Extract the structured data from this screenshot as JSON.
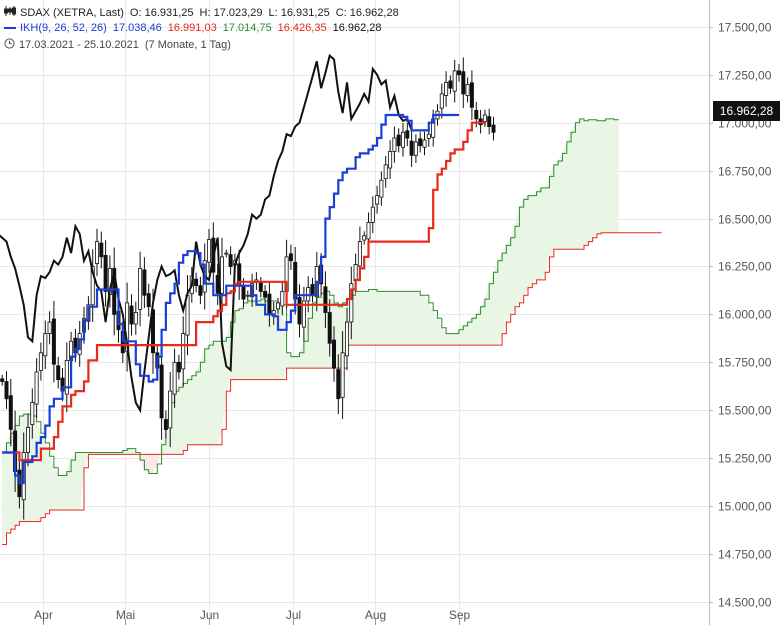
{
  "legend": {
    "instrument": "SDAX (XETRA, Last)",
    "open": "O: 16.931,25",
    "high": "H: 17.023,29",
    "low": "L: 16.931,25",
    "close": "C: 16.962,28",
    "indicator": "IKH(9, 26, 52, 26)",
    "ind_v1": "17.038,46",
    "ind_v2": "16.991,03",
    "ind_v3": "17.014,75",
    "ind_v4": "16.426,35",
    "ind_v5": "16.962,28",
    "period": "17.03.2021 - 25.10.2021",
    "period_note": "(7 Monate, 1 Tag)"
  },
  "price_label": "16.962,28",
  "colors": {
    "tenkan": "#1a3fd6",
    "kijun": "#e8291c",
    "senkou_a": "#2e8b2e",
    "senkou_b": "#e8291c",
    "chikou": "#111111",
    "cloud_bull": "#e9f6e6",
    "cloud_bear": "#fde9e9",
    "grid": "#e8e8e8"
  },
  "chart_data": {
    "type": "line",
    "title": "SDAX (XETRA, Last)",
    "ylim": [
      14380,
      17640
    ],
    "y_ticks": [
      17500,
      17250,
      17000,
      16750,
      16500,
      16250,
      16000,
      15750,
      15500,
      15250,
      15000,
      14750,
      14500
    ],
    "y_tick_labels": [
      "17.500,00",
      "17.250,00",
      "17.000,00",
      "16.750,00",
      "16.500,00",
      "16.250,00",
      "16.000,00",
      "15.750,00",
      "15.500,00",
      "15.250,00",
      "15.000,00",
      "14.750,00",
      "14.500,00"
    ],
    "x_ticks": [
      {
        "label": "Apr",
        "t": 9.5
      },
      {
        "label": "Mai",
        "t": 28.5
      },
      {
        "label": "Jun",
        "t": 48
      },
      {
        "label": "Jul",
        "t": 67.5
      },
      {
        "label": "Aug",
        "t": 86.5
      },
      {
        "label": "Sep",
        "t": 106
      }
    ],
    "t_range": [
      -0.5,
      164
    ],
    "candles_close": [
      15650,
      15560,
      15400,
      15180,
      15050,
      15280,
      15410,
      15540,
      15700,
      15800,
      15900,
      15960,
      15740,
      15660,
      15600,
      15760,
      15860,
      15800,
      15900,
      15980,
      16050,
      16250,
      16380,
      16300,
      16120,
      16240,
      16000,
      15920,
      15800,
      16060,
      15950,
      16010,
      16240,
      16100,
      16040,
      15800,
      15720,
      15460,
      15400,
      15600,
      15750,
      15700,
      15900,
      16100,
      16200,
      16150,
      16100,
      16280,
      16390,
      16220,
      16110,
      16300,
      16320,
      16250,
      16280,
      16150,
      16080,
      16100,
      16160,
      16180,
      16120,
      16090,
      16000,
      16020,
      16060,
      16120,
      16300,
      16280,
      16080,
      15950,
      16070,
      16140,
      16100,
      16250,
      16160,
      16010,
      15850,
      15720,
      15560,
      15800,
      15960,
      16160,
      16260,
      16380,
      16410,
      16480,
      16560,
      16620,
      16700,
      16780,
      16850,
      16920,
      16880,
      16950,
      16920,
      16830,
      16900,
      16880,
      16910,
      16940,
      17020,
      17060,
      17150,
      17210,
      17180,
      17270,
      17250,
      17150,
      17200,
      17080,
      17020,
      16990,
      17040,
      16980,
      16950
    ],
    "series": [
      {
        "name": "IKH(9, 26, 52, 26)",
        "t_start": 0,
        "values": [
          15280,
          15280,
          15280,
          15160,
          15120,
          15230,
          15230,
          15260,
          15330,
          15360,
          15420,
          15520,
          15560,
          15560,
          15620,
          15620,
          15780,
          15820,
          15870,
          15970,
          16040,
          16040,
          16130,
          16130,
          16130,
          16130,
          16130,
          15950,
          15860,
          15860,
          15860,
          15740,
          15680,
          15680,
          15650,
          15660,
          15780,
          15920,
          16060,
          16110,
          16160,
          16270,
          16310,
          16330,
          16330,
          16320,
          16260,
          16160,
          16160,
          16100,
          16100,
          16100,
          16150,
          16150,
          16150,
          16150,
          16150,
          16150,
          16100,
          16050,
          16050,
          16000,
          16000,
          15990,
          15920,
          15920,
          15960,
          16020,
          16100,
          16100,
          16100,
          16100,
          16100,
          16170,
          16300,
          16500,
          16560,
          16630,
          16700,
          16740,
          16760,
          16760,
          16820,
          16840,
          16840,
          16860,
          16880,
          16920,
          16990,
          17040,
          17040,
          17040,
          17040,
          17030,
          17010,
          16960,
          16960,
          16960,
          16960,
          17000,
          17040,
          17040,
          17040,
          17040,
          17040,
          17040,
          17040
        ]
      },
      {
        "name": "IKH(9, 26, 52, 26)",
        "t_start": 0,
        "values": [
          15280,
          15280,
          15280,
          15280,
          15240,
          15240,
          15240,
          15240,
          15240,
          15300,
          15300,
          15300,
          15360,
          15440,
          15520,
          15520,
          15580,
          15600,
          15600,
          15650,
          15760,
          15760,
          15840,
          15840,
          15840,
          15840,
          15840,
          15840,
          15840,
          15840,
          15840,
          15840,
          15840,
          15840,
          15840,
          15840,
          15840,
          15840,
          15840,
          15840,
          15840,
          15840,
          15840,
          15840,
          15840,
          15960,
          15960,
          15960,
          15960,
          15990,
          16020,
          16050,
          16110,
          16120,
          16160,
          16170,
          16170,
          16170,
          16170,
          16170,
          16170,
          16170,
          16170,
          16170,
          16170,
          16170,
          16050,
          16050,
          16050,
          16050,
          16050,
          16050,
          16050,
          16050,
          16050,
          16050,
          16050,
          16050,
          16050,
          16050,
          16080,
          16130,
          16180,
          16240,
          16300,
          16380,
          16380,
          16380,
          16380,
          16380,
          16380,
          16380,
          16380,
          16380,
          16380,
          16380,
          16380,
          16380,
          16380,
          16450,
          16650,
          16730,
          16760,
          16800,
          16840,
          16860,
          16860,
          16900,
          16960,
          17000,
          17000,
          17000,
          16991
        ]
      },
      {
        "name": "IKH(9, 26, 52, 26)",
        "t_start": 0,
        "values": [
          15280,
          15330,
          15380,
          15420,
          15470,
          15480,
          15480,
          15470,
          15440,
          15380,
          15330,
          15260,
          15200,
          15160,
          15160,
          15180,
          15240,
          15280,
          15280,
          15280,
          15280,
          15280,
          15280,
          15280,
          15280,
          15280,
          15280,
          15280,
          15290,
          15300,
          15300,
          15280,
          15240,
          15190,
          15170,
          15170,
          15220,
          15320,
          15440,
          15540,
          15600,
          15620,
          15640,
          15660,
          15680,
          15700,
          15750,
          15820,
          15840,
          15860,
          15860,
          15860,
          15880,
          15960,
          16020,
          16030,
          16060,
          16070,
          16070,
          16070,
          16080,
          16070,
          16070,
          16070,
          16060,
          16050,
          15800,
          15780,
          15780,
          15800,
          15860,
          15980,
          16060,
          16090,
          16110,
          16120,
          16100,
          16060,
          16040,
          16060,
          16080,
          16100,
          16120,
          16120,
          16120,
          16130,
          16130,
          16120,
          16120,
          16120,
          16120,
          16120,
          16120,
          16120,
          16120,
          16120,
          16120,
          16100,
          16100,
          16060,
          16020,
          15980,
          15930,
          15900,
          15900,
          15900,
          15920,
          15940,
          15960,
          15980,
          16000,
          16040,
          16080,
          16160,
          16220,
          16280,
          16320,
          16360,
          16400,
          16460,
          16560,
          16600,
          16620,
          16620,
          16640,
          16660,
          16660,
          16720,
          16780,
          16800,
          16840,
          16900,
          16950,
          17000,
          17020,
          17010,
          17015,
          17015,
          17010,
          17010,
          17020,
          17020,
          17015,
          17014.75
        ]
      },
      {
        "name": "IKH(9, 26, 52, 26)",
        "t_start": 0,
        "values": [
          14800,
          14860,
          14880,
          14900,
          14920,
          14920,
          14920,
          14920,
          14920,
          14940,
          14960,
          14980,
          14980,
          14980,
          14980,
          14980,
          14980,
          14980,
          14980,
          15200,
          15270,
          15270,
          15270,
          15270,
          15270,
          15270,
          15270,
          15270,
          15270,
          15270,
          15270,
          15270,
          15270,
          15270,
          15270,
          15270,
          15270,
          15270,
          15270,
          15270,
          15270,
          15270,
          15290,
          15320,
          15320,
          15320,
          15320,
          15320,
          15320,
          15320,
          15320,
          15400,
          15600,
          15660,
          15660,
          15660,
          15660,
          15660,
          15660,
          15660,
          15660,
          15660,
          15660,
          15660,
          15660,
          15660,
          15720,
          15720,
          15720,
          15720,
          15720,
          15720,
          15720,
          15720,
          15720,
          15720,
          15720,
          15720,
          15720,
          15720,
          15840,
          15840,
          15840,
          15840,
          15840,
          15840,
          15840,
          15840,
          15840,
          15840,
          15840,
          15840,
          15840,
          15840,
          15840,
          15840,
          15840,
          15840,
          15840,
          15840,
          15840,
          15840,
          15840,
          15840,
          15840,
          15840,
          15840,
          15840,
          15840,
          15840,
          15840,
          15840,
          15840,
          15840,
          15840,
          15840,
          15900,
          15960,
          16000,
          16040,
          16060,
          16100,
          16140,
          16160,
          16180,
          16180,
          16220,
          16300,
          16340,
          16340,
          16340,
          16340,
          16340,
          16340,
          16340,
          16360,
          16380,
          16400,
          16420,
          16426,
          16426,
          16426,
          16426,
          16426,
          16426,
          16426,
          16426,
          16426,
          16426,
          16426,
          16426,
          16426,
          16426,
          16426.35
        ]
      },
      {
        "name": "IKH(9, 26, 52, 26)",
        "t_start": -1,
        "values": [
          16420,
          16400,
          16380,
          16300,
          16240,
          16150,
          16050,
          15880,
          15860,
          16100,
          16200,
          16190,
          16220,
          16280,
          16260,
          16300,
          16400,
          16320,
          16460,
          16420,
          16280,
          16330,
          16220,
          16150,
          16120,
          15960,
          16130,
          16220,
          16080,
          16000,
          15850,
          15670,
          15540,
          15500,
          15700,
          15880,
          16060,
          16180,
          16250,
          16200,
          16210,
          16230,
          16100,
          16020,
          16110,
          16150,
          16380,
          16260,
          16200,
          16180,
          16300,
          16400,
          15850,
          15730,
          15710,
          16260,
          16320,
          16360,
          16420,
          16520,
          16500,
          16520,
          16600,
          16620,
          16720,
          16800,
          16850,
          16940,
          16930,
          16980,
          17000,
          17080,
          17160,
          17240,
          17320,
          17180,
          17260,
          17350,
          17330,
          17160,
          17050,
          17210,
          17020,
          17060,
          17100,
          17150,
          17110,
          17280,
          17250,
          17200,
          17220,
          17080,
          17140,
          17040,
          17010,
          17020,
          16962.28
        ]
      }
    ]
  }
}
